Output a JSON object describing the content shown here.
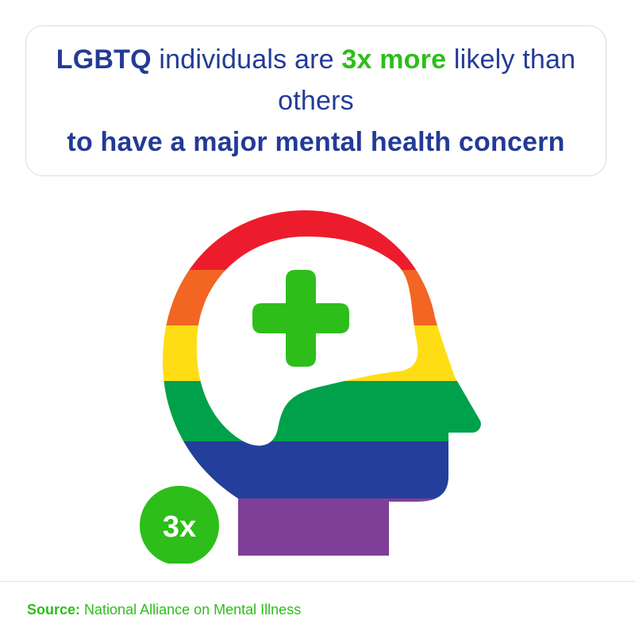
{
  "headline": {
    "part1": "LGBTQ",
    "part2": " individuals are ",
    "part3": "3x more",
    "part4": " likely than others ",
    "part5": "to have a major mental health concern"
  },
  "badge": {
    "label": "3x"
  },
  "source": {
    "label": "Source:",
    "text": " National Alliance on Mental Illness"
  },
  "colors": {
    "navy": "#233b96",
    "green": "#2dbe1a",
    "red": "#ec1c2d",
    "orange": "#f26522",
    "yellow": "#ffdd15",
    "dark_green": "#00a14b",
    "blue": "#233f9b",
    "purple": "#7f3f98"
  },
  "icons": {
    "head": "rainbow-head-icon",
    "cross": "medical-cross-icon"
  }
}
